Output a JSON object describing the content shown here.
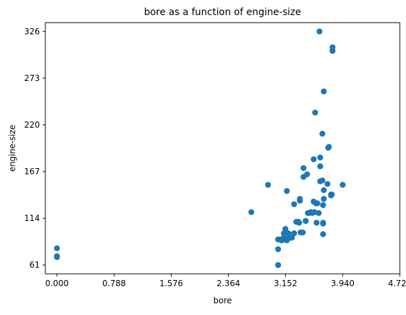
{
  "chart_data": {
    "type": "scatter",
    "title": "bore as a function of engine-size",
    "xlabel": "bore",
    "ylabel": "engine-size",
    "xlim": [
      -0.16,
      4.728
    ],
    "ylim": [
      51,
      336
    ],
    "xticks": [
      0.0,
      0.788,
      1.576,
      2.364,
      3.152,
      3.94,
      4.728
    ],
    "xtick_labels": [
      "0.000",
      "0.788",
      "1.576",
      "2.364",
      "3.152",
      "3.940",
      "4.728"
    ],
    "yticks": [
      61,
      114,
      167,
      220,
      273,
      326
    ],
    "ytick_labels": [
      "61",
      "114",
      "167",
      "220",
      "273",
      "326"
    ],
    "grid": false,
    "marker_color": "#1f77b4",
    "points": [
      [
        0.0,
        80
      ],
      [
        0.0,
        70
      ],
      [
        0.0,
        71
      ],
      [
        2.68,
        121
      ],
      [
        2.91,
        152
      ],
      [
        3.05,
        61
      ],
      [
        3.05,
        79
      ],
      [
        3.05,
        90
      ],
      [
        3.08,
        90
      ],
      [
        3.1,
        89
      ],
      [
        3.13,
        92
      ],
      [
        3.13,
        97
      ],
      [
        3.15,
        98
      ],
      [
        3.15,
        90
      ],
      [
        3.15,
        102
      ],
      [
        3.17,
        89
      ],
      [
        3.19,
        91
      ],
      [
        3.19,
        97
      ],
      [
        3.17,
        145
      ],
      [
        3.24,
        92
      ],
      [
        3.27,
        97
      ],
      [
        3.27,
        130
      ],
      [
        3.3,
        110
      ],
      [
        3.31,
        110
      ],
      [
        3.33,
        110
      ],
      [
        3.34,
        109
      ],
      [
        3.35,
        134
      ],
      [
        3.35,
        136
      ],
      [
        3.36,
        98
      ],
      [
        3.39,
        98
      ],
      [
        3.4,
        171
      ],
      [
        3.4,
        161
      ],
      [
        3.43,
        111
      ],
      [
        3.43,
        111
      ],
      [
        3.45,
        164
      ],
      [
        3.46,
        120
      ],
      [
        3.47,
        120
      ],
      [
        3.5,
        121
      ],
      [
        3.52,
        120
      ],
      [
        3.54,
        133
      ],
      [
        3.54,
        181
      ],
      [
        3.55,
        121
      ],
      [
        3.56,
        234
      ],
      [
        3.57,
        131
      ],
      [
        3.58,
        109
      ],
      [
        3.59,
        131
      ],
      [
        3.61,
        120
      ],
      [
        3.62,
        326
      ],
      [
        3.63,
        173
      ],
      [
        3.63,
        183
      ],
      [
        3.63,
        156
      ],
      [
        3.66,
        157
      ],
      [
        3.66,
        210
      ],
      [
        3.68,
        258
      ],
      [
        3.67,
        96
      ],
      [
        3.67,
        108
      ],
      [
        3.67,
        109
      ],
      [
        3.67,
        129
      ],
      [
        3.68,
        146
      ],
      [
        3.68,
        136
      ],
      [
        3.73,
        153
      ],
      [
        3.74,
        194
      ],
      [
        3.75,
        195
      ],
      [
        3.78,
        141
      ],
      [
        3.78,
        140
      ],
      [
        3.79,
        141
      ],
      [
        3.8,
        304
      ],
      [
        3.8,
        308
      ],
      [
        3.94,
        152
      ]
    ]
  }
}
